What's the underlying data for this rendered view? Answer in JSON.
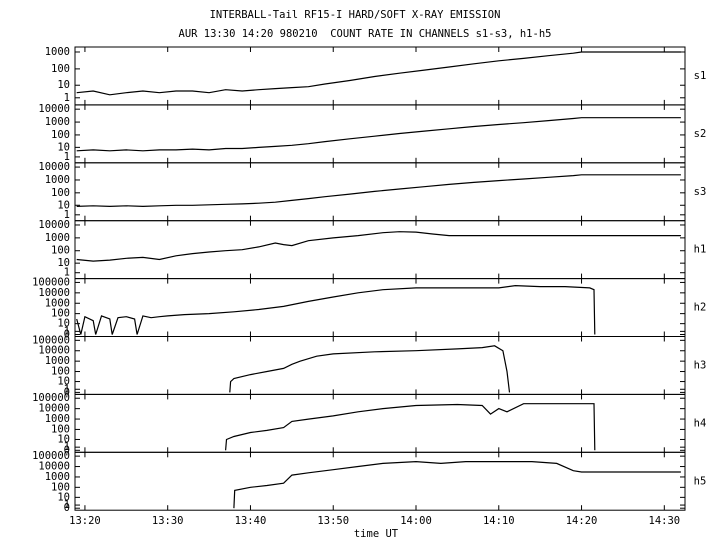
{
  "chart_data": {
    "type": "line",
    "title": "INTERBALL-Tail RF15-I HARD/SOFT X-RAY EMISSION",
    "subtitle": "AUR 13:30 14:20 980210  COUNT RATE IN CHANNELS s1-s3, h1-h5",
    "xlabel": "time UT",
    "yscale": "log1p",
    "xlim": [
      18.8,
      92.5
    ],
    "xticks": [
      {
        "value": 20,
        "label": "13:20"
      },
      {
        "value": 30,
        "label": "13:30"
      },
      {
        "value": 40,
        "label": "13:40"
      },
      {
        "value": 50,
        "label": "13:50"
      },
      {
        "value": 60,
        "label": "14:00"
      },
      {
        "value": 70,
        "label": "14:10"
      },
      {
        "value": 80,
        "label": "14:20"
      },
      {
        "value": 90,
        "label": "14:30"
      }
    ],
    "series": [
      {
        "name": "s1",
        "color": "#000000",
        "ylim": [
          0,
          1500
        ],
        "yticks": [
          1,
          10,
          100,
          1000
        ],
        "x": [
          19,
          21,
          23,
          25,
          27,
          29,
          31,
          33,
          35,
          37,
          39,
          41,
          43,
          45,
          47,
          49,
          52,
          55,
          58,
          61,
          64,
          67,
          70,
          73,
          76,
          79,
          80,
          84,
          88,
          92
        ],
        "values": [
          3,
          4,
          2,
          3,
          4,
          3,
          4,
          4,
          3,
          5,
          4,
          5,
          6,
          7,
          8,
          12,
          20,
          35,
          55,
          85,
          130,
          200,
          300,
          420,
          600,
          850,
          1000,
          1000,
          1000,
          1000
        ]
      },
      {
        "name": "s2",
        "color": "#000000",
        "ylim": [
          0,
          15000
        ],
        "yticks": [
          1,
          10,
          100,
          1000,
          10000
        ],
        "x": [
          19,
          21,
          23,
          25,
          27,
          29,
          31,
          33,
          35,
          37,
          39,
          41,
          43,
          45,
          47,
          49,
          52,
          55,
          58,
          61,
          64,
          67,
          70,
          73,
          76,
          79,
          80,
          84,
          88,
          92
        ],
        "values": [
          5,
          6,
          5,
          6,
          5,
          6,
          6,
          7,
          6,
          8,
          8,
          10,
          12,
          15,
          20,
          30,
          50,
          80,
          130,
          200,
          300,
          450,
          650,
          900,
          1300,
          1900,
          2200,
          2200,
          2200,
          2200
        ]
      },
      {
        "name": "s3",
        "color": "#000000",
        "ylim": [
          0,
          15000
        ],
        "yticks": [
          1,
          10,
          100,
          1000,
          10000
        ],
        "x": [
          19,
          21,
          23,
          25,
          27,
          29,
          31,
          33,
          35,
          37,
          39,
          41,
          43,
          45,
          47,
          49,
          52,
          55,
          58,
          61,
          64,
          67,
          70,
          73,
          76,
          79,
          80,
          84,
          88,
          92
        ],
        "values": [
          8,
          9,
          8,
          9,
          8,
          9,
          10,
          10,
          11,
          12,
          13,
          15,
          18,
          25,
          35,
          50,
          80,
          130,
          200,
          300,
          450,
          650,
          900,
          1200,
          1600,
          2200,
          2500,
          2500,
          2500,
          2500
        ]
      },
      {
        "name": "h1",
        "color": "#000000",
        "ylim": [
          0,
          15000
        ],
        "yticks": [
          1,
          10,
          100,
          1000,
          10000
        ],
        "x": [
          19,
          21,
          23,
          25,
          27,
          29,
          31,
          33,
          35,
          37,
          39,
          41,
          43,
          44,
          45,
          47,
          50,
          53,
          56,
          58,
          60,
          62,
          64,
          66,
          70,
          75,
          80,
          85,
          92
        ],
        "values": [
          20,
          15,
          18,
          25,
          30,
          20,
          40,
          60,
          80,
          100,
          120,
          200,
          400,
          300,
          250,
          600,
          1000,
          1500,
          2500,
          3000,
          2800,
          2000,
          1500,
          1500,
          1500,
          1500,
          1500,
          1500,
          1500
        ]
      },
      {
        "name": "h2",
        "color": "#000000",
        "ylim": [
          0,
          150000
        ],
        "yticks": [
          0,
          1,
          10,
          100,
          1000,
          10000,
          100000
        ],
        "x": [
          19,
          19.5,
          20,
          21,
          21.3,
          22,
          23,
          23.3,
          24,
          25,
          26,
          26.3,
          27,
          28,
          29,
          30,
          32,
          35,
          38,
          41,
          44,
          47,
          50,
          53,
          56,
          60,
          65,
          70,
          72,
          75,
          78,
          81,
          81.5,
          81.6
        ],
        "values": [
          30,
          0,
          50,
          20,
          0,
          60,
          30,
          0,
          40,
          50,
          30,
          0,
          60,
          40,
          50,
          60,
          80,
          100,
          150,
          250,
          500,
          1500,
          4000,
          10000,
          20000,
          30000,
          30000,
          30000,
          50000,
          40000,
          40000,
          30000,
          20000,
          0
        ]
      },
      {
        "name": "h3",
        "color": "#000000",
        "ylim": [
          0,
          150000
        ],
        "yticks": [
          0,
          1,
          10,
          100,
          1000,
          10000,
          100000
        ],
        "x": [
          37.5,
          37.6,
          38,
          40,
          42,
          44,
          45,
          46,
          48,
          50,
          55,
          60,
          65,
          68,
          69.5,
          70.5,
          71,
          71.3
        ],
        "values": [
          0,
          10,
          20,
          50,
          100,
          200,
          500,
          1000,
          3000,
          5000,
          8000,
          10000,
          15000,
          20000,
          30000,
          10000,
          100,
          0
        ]
      },
      {
        "name": "h4",
        "color": "#000000",
        "ylim": [
          0,
          150000
        ],
        "yticks": [
          0,
          1,
          10,
          100,
          1000,
          10000,
          100000
        ],
        "x": [
          37,
          37.1,
          38,
          40,
          42,
          44,
          45,
          47,
          50,
          53,
          56,
          60,
          65,
          68,
          69,
          70,
          71,
          73,
          76,
          81.5,
          81.6
        ],
        "values": [
          0,
          10,
          20,
          50,
          80,
          150,
          600,
          1000,
          2000,
          5000,
          10000,
          20000,
          25000,
          20000,
          3000,
          10000,
          5000,
          30000,
          30000,
          30000,
          0
        ]
      },
      {
        "name": "h5",
        "color": "#000000",
        "ylim": [
          0,
          150000
        ],
        "yticks": [
          0,
          1,
          10,
          100,
          1000,
          10000,
          100000
        ],
        "x": [
          38,
          38.1,
          40,
          42,
          44,
          45,
          47,
          50,
          53,
          56,
          60,
          63,
          66,
          70,
          74,
          77,
          79,
          80,
          85,
          92
        ],
        "values": [
          0,
          50,
          100,
          150,
          250,
          1500,
          2500,
          5000,
          10000,
          20000,
          30000,
          20000,
          30000,
          30000,
          30000,
          20000,
          4000,
          3000,
          3000,
          3000
        ]
      }
    ]
  }
}
